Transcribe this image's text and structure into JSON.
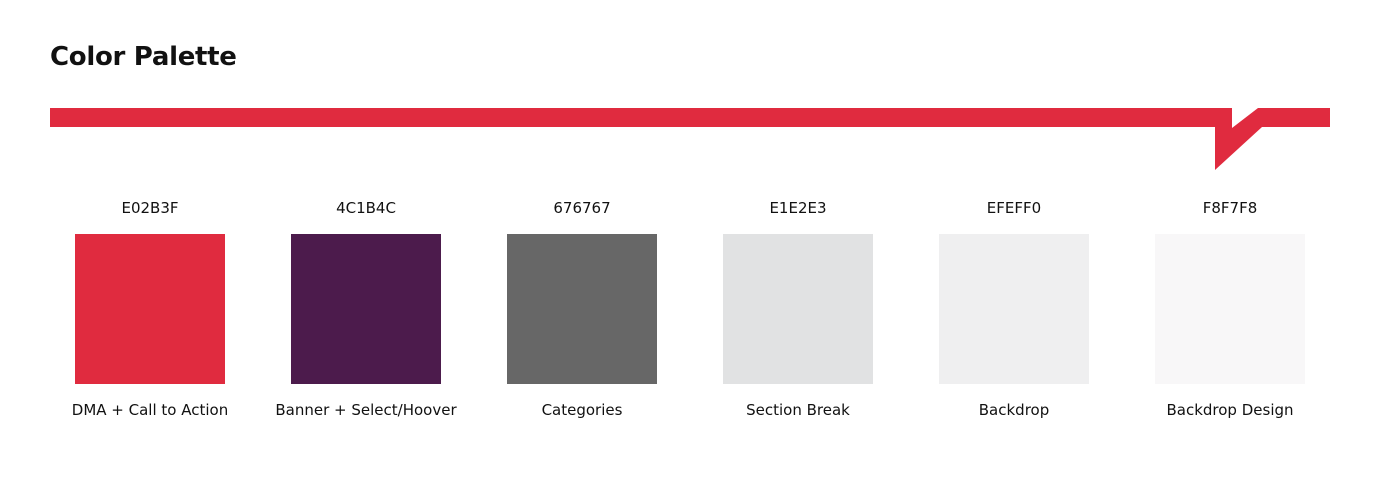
{
  "title": "Color Palette",
  "swatches": [
    {
      "hex": "E02B3F",
      "label": "DMA + Call to Action"
    },
    {
      "hex": "4C1B4C",
      "label": "Banner + Select/Hoover"
    },
    {
      "hex": "676767",
      "label": "Categories"
    },
    {
      "hex": "E1E2E3",
      "label": "Section Break"
    },
    {
      "hex": "EFEFF0",
      "label": "Backdrop"
    },
    {
      "hex": "F8F7F8",
      "label": "Backdrop Design"
    }
  ]
}
